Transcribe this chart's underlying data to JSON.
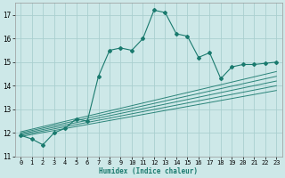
{
  "xlabel": "Humidex (Indice chaleur)",
  "xlim": [
    -0.5,
    23.5
  ],
  "ylim": [
    11,
    17.5
  ],
  "yticks": [
    11,
    12,
    13,
    14,
    15,
    16,
    17
  ],
  "xticks": [
    0,
    1,
    2,
    3,
    4,
    5,
    6,
    7,
    8,
    9,
    10,
    11,
    12,
    13,
    14,
    15,
    16,
    17,
    18,
    19,
    20,
    21,
    22,
    23
  ],
  "bg_color": "#cde8e8",
  "grid_color": "#aacfcf",
  "line_color": "#1a7a6e",
  "main_x": [
    0,
    1,
    2,
    3,
    4,
    5,
    6,
    7,
    8,
    9,
    10,
    11,
    12,
    13,
    14,
    15,
    16,
    17,
    18,
    19,
    20,
    21,
    22,
    23
  ],
  "main_y": [
    11.9,
    11.75,
    11.5,
    12.0,
    12.2,
    12.6,
    12.5,
    14.4,
    15.5,
    15.6,
    15.5,
    16.0,
    17.2,
    17.1,
    16.2,
    16.1,
    15.2,
    15.4,
    14.3,
    14.8,
    14.9,
    14.9,
    14.95,
    15.0
  ],
  "band_lines": [
    [
      0,
      11.85,
      23,
      13.8
    ],
    [
      0,
      11.9,
      23,
      14.0
    ],
    [
      0,
      11.95,
      23,
      14.2
    ],
    [
      0,
      12.0,
      23,
      14.4
    ],
    [
      0,
      12.05,
      23,
      14.6
    ]
  ]
}
